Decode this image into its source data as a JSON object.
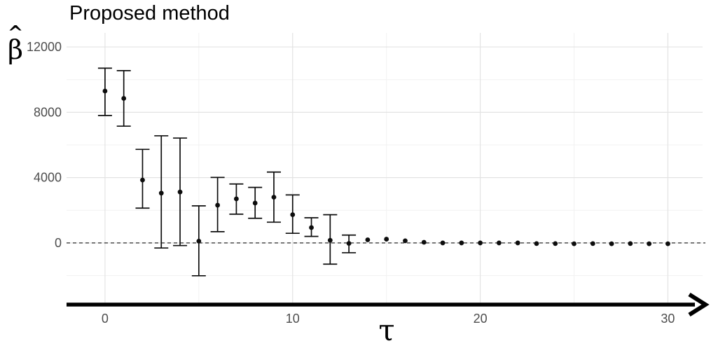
{
  "title": "Proposed method",
  "axes": {
    "y_label_symbol": "β",
    "y_label_hat": "^",
    "y_label_full": "β̂",
    "x_label": "τ"
  },
  "colors": {
    "background": "#FFFFFF",
    "grid_major": "#E3E3E3",
    "grid_minor": "#F1F1F1",
    "point": "#0D0D0D",
    "reference_line": "#111111",
    "tick_label": "#4D4D4D",
    "axis_arrow": "#000000",
    "title": "#000000"
  },
  "chart_data": {
    "type": "scatter",
    "subtype": "point-estimates-with-error-bars",
    "title": "Proposed method",
    "xlabel": "τ",
    "ylabel": "β̂",
    "xlim": [
      -2.05,
      31.85
    ],
    "ylim": [
      -3690,
      12860
    ],
    "xticks": [
      0,
      10,
      20,
      30
    ],
    "yticks": [
      0,
      4000,
      8000,
      12000
    ],
    "x_minor_gridlines": [
      5,
      15,
      25
    ],
    "y_minor_gridlines": [
      -2000,
      2000,
      6000,
      10000
    ],
    "grid": "on",
    "legend": "none",
    "zero_reference_line": {
      "y": 0,
      "style": "dashed"
    },
    "points": [
      {
        "tau": 0,
        "estimate": 9300,
        "ci_low": 7800,
        "ci_high": 10700
      },
      {
        "tau": 1,
        "estimate": 8850,
        "ci_low": 7150,
        "ci_high": 10550
      },
      {
        "tau": 2,
        "estimate": 3850,
        "ci_low": 2130,
        "ci_high": 5730
      },
      {
        "tau": 3,
        "estimate": 3050,
        "ci_low": -310,
        "ci_high": 6560
      },
      {
        "tau": 4,
        "estimate": 3120,
        "ci_low": -160,
        "ci_high": 6420
      },
      {
        "tau": 5,
        "estimate": 110,
        "ci_low": -2010,
        "ci_high": 2270
      },
      {
        "tau": 6,
        "estimate": 2310,
        "ci_low": 690,
        "ci_high": 4010
      },
      {
        "tau": 7,
        "estimate": 2700,
        "ci_low": 1760,
        "ci_high": 3610
      },
      {
        "tau": 8,
        "estimate": 2440,
        "ci_low": 1510,
        "ci_high": 3400
      },
      {
        "tau": 9,
        "estimate": 2800,
        "ci_low": 1270,
        "ci_high": 4340
      },
      {
        "tau": 10,
        "estimate": 1730,
        "ci_low": 590,
        "ci_high": 2940
      },
      {
        "tau": 11,
        "estimate": 940,
        "ci_low": 400,
        "ci_high": 1540
      },
      {
        "tau": 12,
        "estimate": 160,
        "ci_low": -1300,
        "ci_high": 1730
      },
      {
        "tau": 13,
        "estimate": -30,
        "ci_low": -600,
        "ci_high": 480
      },
      {
        "tau": 14,
        "estimate": 190,
        "ci_low": null,
        "ci_high": null
      },
      {
        "tau": 15,
        "estimate": 230,
        "ci_low": null,
        "ci_high": null
      },
      {
        "tau": 16,
        "estimate": 130,
        "ci_low": null,
        "ci_high": null
      },
      {
        "tau": 17,
        "estimate": 40,
        "ci_low": null,
        "ci_high": null
      },
      {
        "tau": 18,
        "estimate": 0,
        "ci_low": null,
        "ci_high": null
      },
      {
        "tau": 19,
        "estimate": 0,
        "ci_low": null,
        "ci_high": null
      },
      {
        "tau": 20,
        "estimate": 0,
        "ci_low": null,
        "ci_high": null
      },
      {
        "tau": 21,
        "estimate": 0,
        "ci_low": null,
        "ci_high": null
      },
      {
        "tau": 22,
        "estimate": 0,
        "ci_low": null,
        "ci_high": null
      },
      {
        "tau": 23,
        "estimate": -40,
        "ci_low": null,
        "ci_high": null
      },
      {
        "tau": 24,
        "estimate": -40,
        "ci_low": null,
        "ci_high": null
      },
      {
        "tau": 25,
        "estimate": -50,
        "ci_low": null,
        "ci_high": null
      },
      {
        "tau": 26,
        "estimate": -40,
        "ci_low": null,
        "ci_high": null
      },
      {
        "tau": 27,
        "estimate": -50,
        "ci_low": null,
        "ci_high": null
      },
      {
        "tau": 28,
        "estimate": -40,
        "ci_low": null,
        "ci_high": null
      },
      {
        "tau": 29,
        "estimate": -50,
        "ci_low": null,
        "ci_high": null
      },
      {
        "tau": 30,
        "estimate": -50,
        "ci_low": null,
        "ci_high": null
      }
    ]
  }
}
